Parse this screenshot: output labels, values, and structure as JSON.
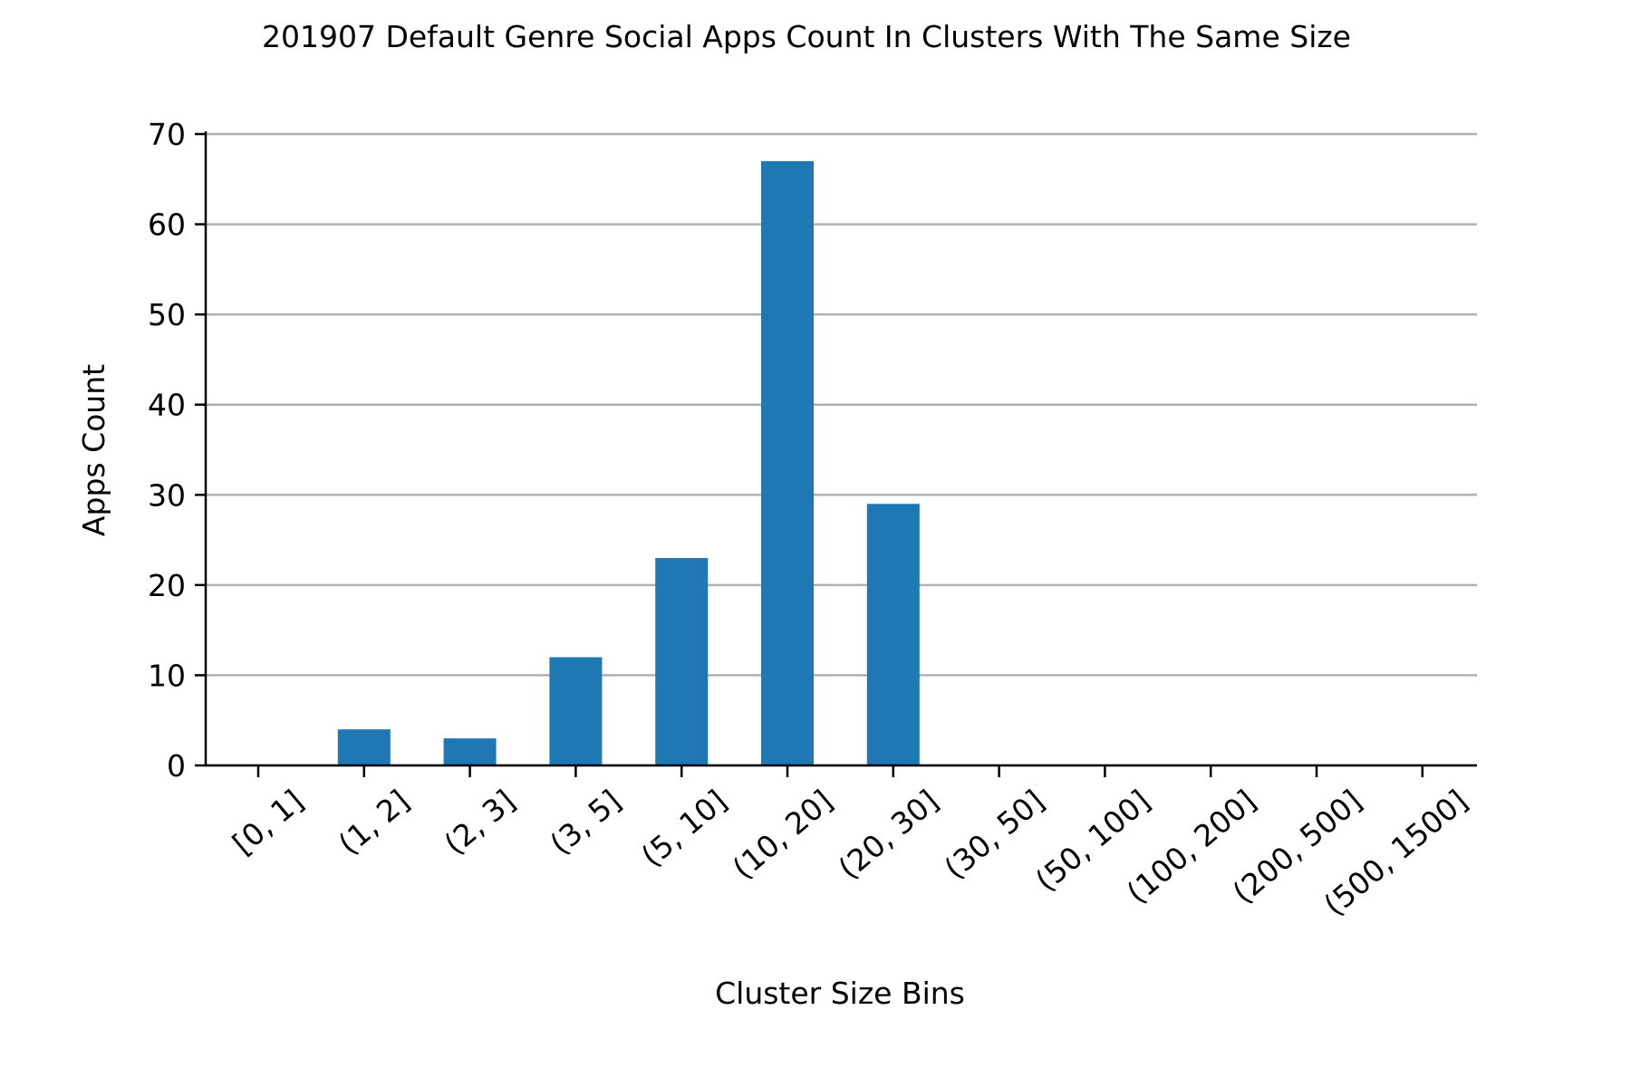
{
  "chart_data": {
    "type": "bar",
    "title": "201907 Default Genre Social Apps Count In Clusters With The Same Size",
    "xlabel": "Cluster Size Bins",
    "ylabel": "Apps Count",
    "categories": [
      "[0, 1]",
      "(1, 2]",
      "(2, 3]",
      "(3, 5]",
      "(5, 10]",
      "(10, 20]",
      "(20, 30]",
      "(30, 50]",
      "(50, 100]",
      "(100, 200]",
      "(200, 500]",
      "(500, 1500]"
    ],
    "values": [
      0,
      4,
      3,
      12,
      23,
      67,
      29,
      0,
      0,
      0,
      0,
      0
    ],
    "ylim": [
      0,
      70
    ],
    "yticks": [
      0,
      10,
      20,
      30,
      40,
      50,
      60,
      70
    ],
    "grid": "horizontal",
    "bar_color": "#1f77b4",
    "grid_color": "#b0b0b0"
  }
}
